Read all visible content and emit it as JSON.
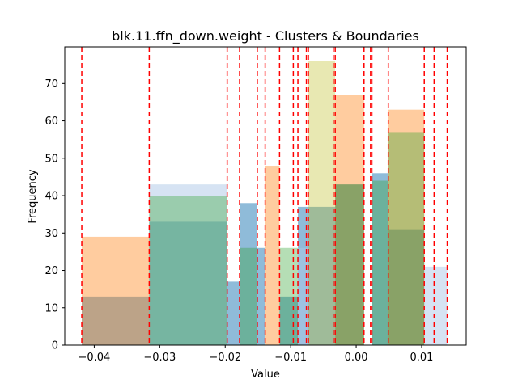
{
  "chart_data": {
    "type": "bar",
    "subtype": "overlapping-histogram",
    "title": "blk.11.ffn_down.weight - Clusters & Boundaries",
    "xlabel": "Value",
    "ylabel": "Frequency",
    "xlim": [
      -0.0445,
      0.0168
    ],
    "ylim": [
      0,
      79.8
    ],
    "xticks": [
      -0.04,
      -0.03,
      -0.02,
      -0.01,
      0.0,
      0.01
    ],
    "xtick_labels": [
      "−0.04",
      "−0.03",
      "−0.02",
      "−0.01",
      "0.00",
      "0.01"
    ],
    "yticks": [
      0,
      10,
      20,
      30,
      40,
      50,
      60,
      70
    ],
    "ytick_labels": [
      "0",
      "10",
      "20",
      "30",
      "40",
      "50",
      "60",
      "70"
    ],
    "grid": false,
    "legend": "none",
    "series": [
      {
        "color": "#1f77b4",
        "alpha": 0.5,
        "bars": [
          {
            "x0": -0.0419,
            "x1": -0.0316,
            "value": 13
          },
          {
            "x0": -0.0316,
            "x1": -0.0197,
            "value": 33
          },
          {
            "x0": -0.0197,
            "x1": -0.0178,
            "value": 17
          },
          {
            "x0": -0.0178,
            "x1": -0.0151,
            "value": 38
          },
          {
            "x0": -0.0151,
            "x1": -0.0139,
            "value": 26
          },
          {
            "x0": -0.0117,
            "x1": -0.0089,
            "value": 13
          },
          {
            "x0": -0.0089,
            "x1": -0.0073,
            "value": 37
          },
          {
            "x0": -0.0073,
            "x1": -0.0032,
            "value": 37
          },
          {
            "x0": -0.0032,
            "x1": 0.0012,
            "value": 43
          },
          {
            "x0": 0.0024,
            "x1": 0.0049,
            "value": 46
          },
          {
            "x0": 0.0049,
            "x1": 0.0104,
            "value": 31
          }
        ]
      },
      {
        "color": "#ff7f0e",
        "alpha": 0.4,
        "bars": [
          {
            "x0": -0.0419,
            "x1": -0.0316,
            "value": 29
          },
          {
            "x0": -0.0139,
            "x1": -0.0117,
            "value": 48
          },
          {
            "x0": -0.0032,
            "x1": 0.0012,
            "value": 67
          },
          {
            "x0": 0.0049,
            "x1": 0.0104,
            "value": 63
          }
        ]
      },
      {
        "color": "#aec7e8",
        "alpha": 0.5,
        "bars": [
          {
            "x0": -0.0316,
            "x1": -0.0197,
            "value": 43
          },
          {
            "x0": -0.0089,
            "x1": -0.0073,
            "value": 26
          },
          {
            "x0": 0.0104,
            "x1": 0.0139,
            "value": 21
          }
        ]
      },
      {
        "color": "#2ca02c",
        "alpha": 0.35,
        "bars": [
          {
            "x0": -0.0316,
            "x1": -0.0197,
            "value": 40
          },
          {
            "x0": -0.0178,
            "x1": -0.0151,
            "value": 26
          },
          {
            "x0": -0.0117,
            "x1": -0.0089,
            "value": 26
          },
          {
            "x0": -0.0032,
            "x1": 0.0012,
            "value": 43
          },
          {
            "x0": 0.0024,
            "x1": 0.0049,
            "value": 44
          },
          {
            "x0": 0.0049,
            "x1": 0.0104,
            "value": 57
          }
        ]
      },
      {
        "color": "#bcbd22",
        "alpha": 0.35,
        "bars": [
          {
            "x0": -0.0073,
            "x1": -0.0032,
            "value": 76
          }
        ]
      }
    ],
    "boundaries": {
      "color": "#ff0000",
      "style": "dashed",
      "x": [
        -0.0419,
        -0.0316,
        -0.0197,
        -0.0178,
        -0.0151,
        -0.0139,
        -0.0117,
        -0.0096,
        -0.0089,
        -0.0076,
        -0.0073,
        -0.0035,
        -0.0032,
        0.0012,
        0.0022,
        0.0024,
        0.0049,
        0.0104,
        0.0119,
        0.0139
      ]
    }
  }
}
